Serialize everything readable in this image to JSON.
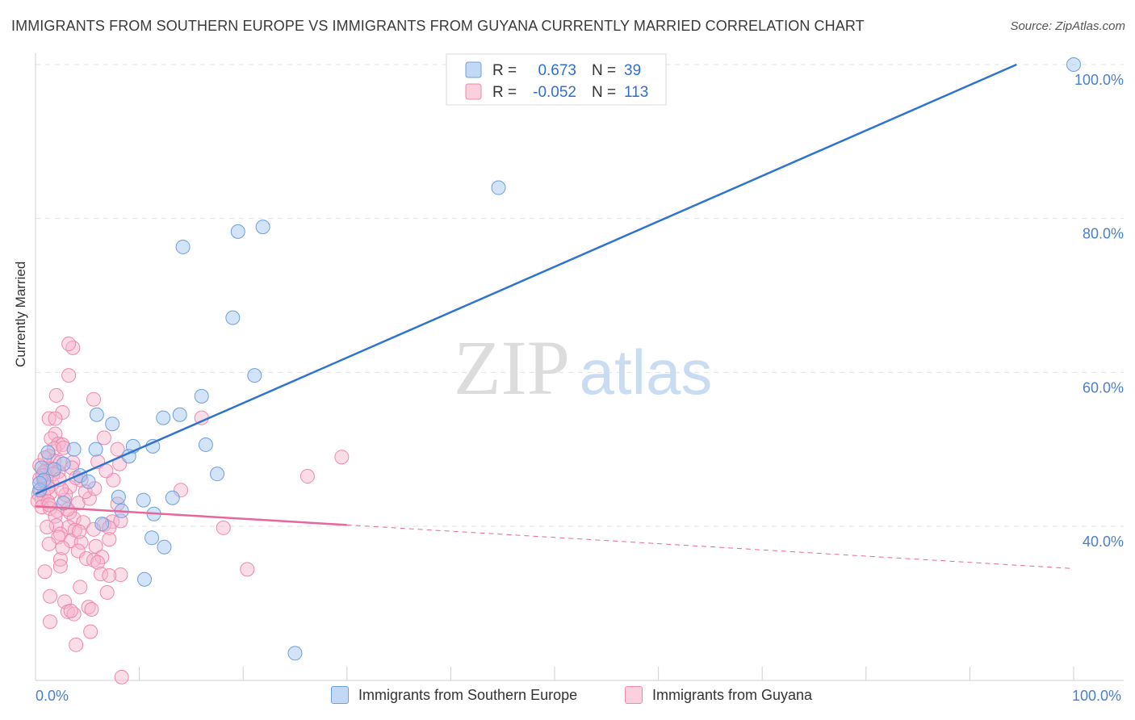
{
  "title": "IMMIGRANTS FROM SOUTHERN EUROPE VS IMMIGRANTS FROM GUYANA CURRENTLY MARRIED CORRELATION CHART",
  "source": "Source: ZipAtlas.com",
  "watermark": {
    "zip": "ZIP",
    "atlas": "atlas"
  },
  "chart_data": {
    "type": "scatter",
    "xlabel": "",
    "ylabel": "Currently Married",
    "xlim": [
      0,
      100
    ],
    "ylim": [
      19,
      102
    ],
    "x_tick_labels": {
      "left": "0.0%",
      "right": "100.0%"
    },
    "y_ticks": [
      {
        "value": 40,
        "label": "40.0%"
      },
      {
        "value": 60,
        "label": "60.0%"
      },
      {
        "value": 80,
        "label": "80.0%"
      },
      {
        "value": 100,
        "label": "100.0%"
      }
    ],
    "legend_top": [
      {
        "r_label": "R =",
        "r_value": "0.673",
        "n_label": "N =",
        "n_value": "39"
      },
      {
        "r_label": "R =",
        "r_value": "-0.052",
        "n_label": "N =",
        "n_value": "113"
      }
    ],
    "series": [
      {
        "name": "Immigrants from Southern Europe",
        "color": "#9dc1ef",
        "stroke": "#6d9fe0",
        "line_color": "#2f74d0",
        "trend": {
          "x0": 0,
          "y0": 44.2,
          "x1": 94.5,
          "y1": 100,
          "dash_from": null
        },
        "points": [
          [
            100,
            100
          ],
          [
            44.6,
            84
          ],
          [
            21.9,
            78.9
          ],
          [
            19.5,
            78.3
          ],
          [
            14.2,
            76.3
          ],
          [
            19,
            67.1
          ],
          [
            21.1,
            59.6
          ],
          [
            16,
            56.9
          ],
          [
            13.9,
            54.5
          ],
          [
            12.3,
            54.1
          ],
          [
            5.9,
            54.5
          ],
          [
            7.4,
            53.3
          ],
          [
            9.4,
            50.4
          ],
          [
            11.3,
            50.4
          ],
          [
            16.4,
            50.6
          ],
          [
            3.7,
            50
          ],
          [
            5.8,
            50
          ],
          [
            1.2,
            49.6
          ],
          [
            9,
            49.1
          ],
          [
            2.7,
            48.1
          ],
          [
            0.6,
            47.6
          ],
          [
            17.5,
            46.8
          ],
          [
            4.3,
            46.6
          ],
          [
            5.1,
            45.8
          ],
          [
            0.8,
            46
          ],
          [
            0.4,
            44.7
          ],
          [
            8,
            43.8
          ],
          [
            13.2,
            43.7
          ],
          [
            10.4,
            43.4
          ],
          [
            2.7,
            43
          ],
          [
            8.3,
            42
          ],
          [
            11.4,
            41.6
          ],
          [
            6.4,
            40.3
          ],
          [
            11.2,
            38.5
          ],
          [
            12.4,
            37.3
          ],
          [
            10.5,
            33.1
          ],
          [
            25,
            23.5
          ],
          [
            0.4,
            45.6
          ],
          [
            1.8,
            47.4
          ]
        ]
      },
      {
        "name": "Immigrants from Guyana",
        "color": "#f7b3cb",
        "stroke": "#ee89ac",
        "line_color": "#e8679a",
        "trend": {
          "x0": 0,
          "y0": 42.6,
          "x1": 100,
          "y1": 34.5,
          "dash_from": 30
        },
        "points": [
          [
            3.6,
            63.2
          ],
          [
            3.2,
            63.7
          ],
          [
            3.2,
            59.6
          ],
          [
            2,
            57
          ],
          [
            5.6,
            56.5
          ],
          [
            2.6,
            54.8
          ],
          [
            1.3,
            54
          ],
          [
            1.9,
            54
          ],
          [
            16,
            54.1
          ],
          [
            1.9,
            52
          ],
          [
            1.5,
            51.4
          ],
          [
            6.6,
            51.5
          ],
          [
            2.2,
            50.7
          ],
          [
            2.6,
            50.6
          ],
          [
            1.8,
            50.1
          ],
          [
            2.7,
            50.2
          ],
          [
            7.9,
            50
          ],
          [
            1.3,
            49.1
          ],
          [
            1.8,
            48.5
          ],
          [
            2.4,
            48.3
          ],
          [
            3.6,
            48.3
          ],
          [
            6,
            48.4
          ],
          [
            29.5,
            49
          ],
          [
            8.1,
            48.1
          ],
          [
            1.1,
            47.5
          ],
          [
            1.5,
            47.5
          ],
          [
            3.5,
            47.6
          ],
          [
            2.2,
            47.1
          ],
          [
            0.4,
            47.9
          ],
          [
            0.8,
            47
          ],
          [
            26.2,
            46.5
          ],
          [
            7.5,
            46
          ],
          [
            4.4,
            46
          ],
          [
            0.4,
            46.2
          ],
          [
            0.9,
            45.7
          ],
          [
            1.6,
            45.5
          ],
          [
            3.3,
            45.1
          ],
          [
            14,
            44.7
          ],
          [
            0.5,
            44.8
          ],
          [
            0.3,
            44.2
          ],
          [
            0.8,
            44.1
          ],
          [
            1.4,
            44.3
          ],
          [
            0.6,
            43.5
          ],
          [
            0.2,
            43.3
          ],
          [
            1.2,
            43.2
          ],
          [
            2.8,
            43.4
          ],
          [
            4.1,
            43
          ],
          [
            0.6,
            42.5
          ],
          [
            1.4,
            42.3
          ],
          [
            2.1,
            42
          ],
          [
            3.3,
            41.8
          ],
          [
            1.9,
            41.3
          ],
          [
            3.7,
            41
          ],
          [
            4.6,
            40.5
          ],
          [
            7.4,
            40.6
          ],
          [
            8.2,
            40.7
          ],
          [
            2,
            40.1
          ],
          [
            3.2,
            39.9
          ],
          [
            6.6,
            40.2
          ],
          [
            1.1,
            39.9
          ],
          [
            3.8,
            39.5
          ],
          [
            5.6,
            39.6
          ],
          [
            18.1,
            39.8
          ],
          [
            7.1,
            39.8
          ],
          [
            2.4,
            39
          ],
          [
            2.2,
            38.6
          ],
          [
            3.4,
            38.1
          ],
          [
            4.4,
            37.9
          ],
          [
            1.3,
            37.7
          ],
          [
            5.8,
            37.4
          ],
          [
            7.1,
            38.3
          ],
          [
            4.1,
            36.8
          ],
          [
            6.4,
            36
          ],
          [
            2.4,
            35.7
          ],
          [
            4.9,
            35.8
          ],
          [
            5.6,
            35.6
          ],
          [
            2.4,
            34.8
          ],
          [
            6,
            35.3
          ],
          [
            0.9,
            34.1
          ],
          [
            8.2,
            33.7
          ],
          [
            20.4,
            34.4
          ],
          [
            4.3,
            32.1
          ],
          [
            6.3,
            33.8
          ],
          [
            7.1,
            33.6
          ],
          [
            1.4,
            30.9
          ],
          [
            2.8,
            30.2
          ],
          [
            3.1,
            28.9
          ],
          [
            5.1,
            29.5
          ],
          [
            5.4,
            29.2
          ],
          [
            3.7,
            28.6
          ],
          [
            1.4,
            27.6
          ],
          [
            5.3,
            26.3
          ],
          [
            3.9,
            24.6
          ],
          [
            8.3,
            20.4
          ],
          [
            3.4,
            29
          ],
          [
            1.2,
            45
          ],
          [
            0.7,
            46.6
          ],
          [
            2.9,
            44.1
          ],
          [
            5.2,
            43.6
          ],
          [
            1.7,
            46.8
          ],
          [
            4.8,
            44.5
          ],
          [
            2.5,
            44.8
          ],
          [
            1.3,
            42.8
          ],
          [
            3.9,
            46.3
          ],
          [
            6.8,
            47.2
          ],
          [
            0.9,
            48.9
          ],
          [
            2.3,
            46.1
          ],
          [
            3.1,
            42.2
          ],
          [
            5.7,
            44.9
          ],
          [
            4.2,
            39.3
          ],
          [
            7.9,
            42.9
          ],
          [
            2.6,
            37.2
          ],
          [
            6.9,
            31.4
          ]
        ]
      }
    ]
  }
}
